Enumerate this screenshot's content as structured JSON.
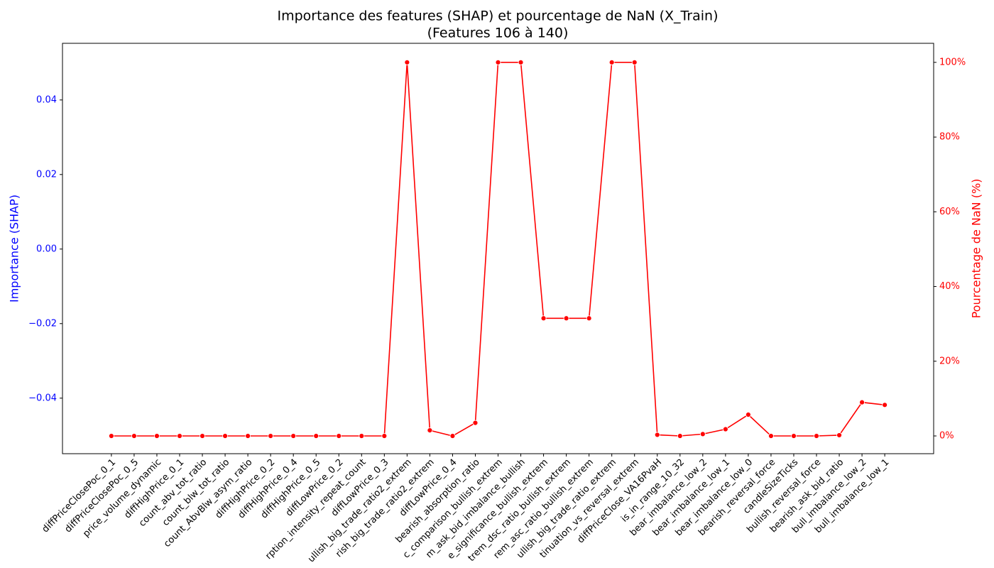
{
  "chart_data": {
    "type": "line",
    "title": "Importance des features (SHAP) et pourcentage de NaN (X_Train)",
    "subtitle": "(Features 106 à 140)",
    "ylabel": "Importance (SHAP)",
    "y2label": "Pourcentage de NaN (%)",
    "ylim": [
      -0.0549,
      0.0552
    ],
    "yticks": [
      {
        "value": -0.04,
        "label": "−0.04"
      },
      {
        "value": -0.02,
        "label": "−0.02"
      },
      {
        "value": 0,
        "label": "0.00"
      },
      {
        "value": 0.02,
        "label": "0.02"
      },
      {
        "value": 0.04,
        "label": "0.04"
      }
    ],
    "y2lim": [
      -4.75,
      105.1
    ],
    "y2ticks": [
      {
        "value": 0,
        "label": "0%"
      },
      {
        "value": 20,
        "label": "20%"
      },
      {
        "value": 40,
        "label": "40%"
      },
      {
        "value": 60,
        "label": "60%"
      },
      {
        "value": 80,
        "label": "80%"
      },
      {
        "value": 100,
        "label": "100%"
      }
    ],
    "ycolor": "#0000ff",
    "categories": [
      "diffPriceClosePoc_0_1",
      "diffPriceClosePoc_0_5",
      "price_volume_dynamic",
      "diffHighPrice_0_1",
      "count_abv_tot_ratio",
      "count_blw_tot_ratio",
      "count_AbvBlw_asym_ratio",
      "diffHighPrice_0_2",
      "diffHighPrice_0_4",
      "diffHighPrice_0_5",
      "diffLowPrice_0_2",
      "rption_intensity_repeat_count",
      "diffLowPrice_0_3",
      "ullish_big_trade_ratio2_extrem",
      "rish_big_trade_ratio2_extrem",
      "diffLowPrice_0_4",
      "bearish_absorption_ratio",
      "c_comparison_bullish_extrem",
      "m_ask_bid_imbalance_bullish",
      "e_significance_bullish_extrem",
      "trem_dsc_ratio_bullish_extrem",
      "rem_asc_ratio_bullish_extrem",
      "ullish_big_trade_ratio_extrem",
      "tinuation_vs_reversal_extrem",
      "diffPriceClose_VA16PvaH",
      "is_in_range_10_32",
      "bear_imbalance_low_2",
      "bear_imbalance_low_1",
      "bear_imbalance_low_0",
      "bearish_reversal_force",
      "candleSizeTicks",
      "bullish_reversal_force",
      "bearish_ask_bid_ratio",
      "bull_imbalance_low_2",
      "bull_imbalance_low_1"
    ],
    "series": [
      {
        "name": "Pourcentage de NaN (%)",
        "color": "#ff0000",
        "axis": "y2",
        "values": [
          0,
          0,
          0,
          0,
          0,
          0,
          0,
          0,
          0,
          0,
          0,
          0,
          0,
          100,
          1.5,
          0,
          3.5,
          100,
          100,
          31.5,
          31.5,
          31.5,
          100,
          100,
          0.3,
          0,
          0.5,
          1.8,
          5.7,
          0,
          0,
          0,
          0.2,
          9,
          8.3
        ]
      }
    ]
  }
}
